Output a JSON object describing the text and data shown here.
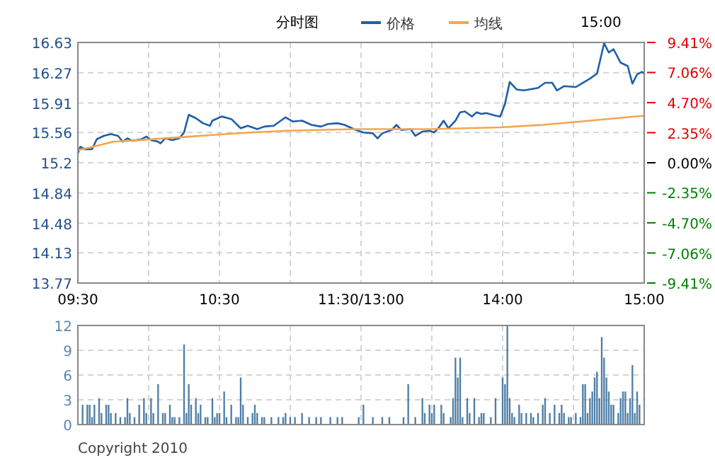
{
  "chart_data": [
    {
      "type": "line",
      "title": "分时图",
      "annotations": [
        "15:00"
      ],
      "legend": "top",
      "grid": true,
      "categories": [
        "09:30",
        null,
        null,
        null,
        null,
        null,
        null,
        null,
        null,
        null,
        null,
        null,
        null,
        null,
        null,
        null,
        null,
        null,
        null,
        null,
        null,
        null,
        null,
        null,
        null,
        null,
        null,
        null,
        null,
        null,
        null,
        null,
        null,
        null,
        null,
        null,
        null,
        null,
        null,
        null,
        null,
        null,
        null,
        null,
        null,
        null,
        null,
        null,
        null,
        null,
        null,
        null,
        null,
        null,
        null,
        null,
        null,
        null,
        null,
        null,
        "10:30",
        null,
        null,
        null,
        null,
        null,
        null,
        null,
        null,
        null,
        null,
        null,
        null,
        null,
        null,
        null,
        null,
        null,
        null,
        null,
        null,
        null,
        null,
        null,
        null,
        null,
        null,
        null,
        null,
        null,
        null,
        null,
        null,
        null,
        null,
        null,
        null,
        null,
        null,
        null,
        null,
        null,
        null,
        null,
        null,
        null,
        null,
        null,
        null,
        null,
        null,
        null,
        null,
        null,
        null,
        null,
        null,
        null,
        null,
        null,
        "11:30/13:00",
        null,
        null,
        null,
        null,
        null,
        null,
        null,
        null,
        null,
        null,
        null,
        null,
        null,
        null,
        null,
        null,
        null,
        null,
        null,
        null,
        null,
        null,
        null,
        null,
        null,
        null,
        null,
        null,
        null,
        null,
        null,
        null,
        null,
        null,
        null,
        null,
        null,
        null,
        null,
        null,
        null,
        null,
        null,
        null,
        null,
        null,
        null,
        null,
        null,
        null,
        null,
        null,
        null,
        null,
        null,
        null,
        null,
        null,
        null,
        "14:00",
        null,
        null,
        null,
        null,
        null,
        null,
        null,
        null,
        null,
        null,
        null,
        null,
        null,
        null,
        null,
        null,
        null,
        null,
        null,
        null,
        null,
        null,
        null,
        null,
        null,
        null,
        null,
        null,
        null,
        null,
        null,
        null,
        null,
        null,
        null,
        null,
        null,
        null,
        null,
        null,
        null,
        null,
        null,
        null,
        null,
        null,
        null,
        null,
        null,
        null,
        null,
        null,
        null,
        null,
        null,
        null,
        null,
        null,
        null,
        "15:00"
      ],
      "ylim": [
        13.77,
        16.63
      ],
      "yticks": [
        13.77,
        14.13,
        14.48,
        14.84,
        15.2,
        15.56,
        15.91,
        16.27,
        16.63
      ],
      "y2lim": [
        -9.41,
        9.41
      ],
      "y2ticks": [
        {
          "value": -9.41,
          "label": "-9.41%"
        },
        {
          "value": -7.06,
          "label": "-7.06%"
        },
        {
          "value": -4.7,
          "label": "-4.70%"
        },
        {
          "value": -2.35,
          "label": "-2.35%"
        },
        {
          "value": 0,
          "label": "0.00%"
        },
        {
          "value": 2.35,
          "label": "2.35%"
        },
        {
          "value": 4.7,
          "label": "4.70%"
        },
        {
          "value": 7.06,
          "label": "7.06%"
        },
        {
          "value": 9.41,
          "label": "9.41%"
        }
      ],
      "series": [
        {
          "name": "价格",
          "color": "#1f5fa8",
          "values": [
            15.31,
            15.39,
            null,
            15.36,
            null,
            null,
            15.36,
            null,
            15.48,
            null,
            null,
            15.52,
            null,
            null,
            15.54,
            null,
            null,
            15.52,
            null,
            15.45,
            null,
            15.49,
            null,
            15.46,
            null,
            null,
            null,
            15.48,
            null,
            15.51,
            null,
            15.47,
            null,
            null,
            15.45,
            15.43,
            null,
            15.49,
            null,
            null,
            15.47,
            null,
            null,
            15.49,
            null,
            15.56,
            null,
            15.77,
            null,
            null,
            15.73,
            null,
            null,
            15.67,
            null,
            null,
            15.64,
            15.7,
            null,
            null,
            null,
            15.75,
            null,
            null,
            null,
            15.72,
            null,
            null,
            null,
            15.61,
            null,
            null,
            15.64,
            null,
            null,
            null,
            15.6,
            null,
            null,
            15.63,
            null,
            null,
            null,
            15.64,
            null,
            null,
            null,
            null,
            15.74,
            null,
            null,
            15.69,
            null,
            null,
            null,
            15.7,
            null,
            null,
            null,
            15.65,
            null,
            null,
            null,
            15.63,
            null,
            null,
            15.66,
            null,
            null,
            null,
            15.67,
            null,
            null,
            15.65,
            null,
            null,
            null,
            15.6,
            null,
            null,
            null,
            15.56,
            null,
            null,
            null,
            15.55,
            null,
            15.49,
            null,
            15.55,
            null,
            null,
            null,
            15.59,
            null,
            15.65,
            null,
            15.59,
            null,
            null,
            null,
            15.6,
            null,
            15.52,
            null,
            null,
            15.57,
            null,
            null,
            15.58,
            null,
            15.56,
            null,
            15.62,
            null,
            15.7,
            null,
            15.61,
            null,
            null,
            15.7,
            null,
            15.8,
            null,
            15.81,
            null,
            null,
            15.75,
            null,
            15.8,
            null,
            15.78,
            null,
            15.79,
            null,
            null,
            null,
            15.76,
            null,
            15.75,
            null,
            15.9,
            null,
            16.16,
            null,
            null,
            16.07,
            null,
            null,
            16.06,
            null,
            null,
            null,
            null,
            null,
            16.09,
            null,
            null,
            16.15,
            null,
            null,
            16.15,
            null,
            16.06,
            null,
            null,
            16.11,
            null,
            null,
            null,
            null,
            16.1,
            null,
            null,
            16.15,
            null,
            null,
            16.2,
            null,
            null,
            16.26,
            null,
            null,
            16.62,
            null,
            16.51,
            null,
            16.55,
            null,
            null,
            16.39,
            null,
            null,
            16.35,
            null,
            16.14,
            null,
            16.25,
            null,
            16.28,
            16.26
          ]
        },
        {
          "name": "均线",
          "color": "#f5a550",
          "values": [
            15.35,
            null,
            null,
            null,
            null,
            15.38,
            null,
            null,
            null,
            null,
            null,
            null,
            null,
            null,
            null,
            15.45,
            null,
            null,
            null,
            null,
            null,
            null,
            null,
            null,
            null,
            null,
            null,
            15.47,
            null,
            null,
            null,
            null,
            null,
            null,
            null,
            null,
            null,
            null,
            null,
            null,
            null,
            null,
            null,
            null,
            null,
            null,
            null,
            15.51,
            null,
            null,
            null,
            null,
            null,
            null,
            null,
            null,
            null,
            15.53,
            null,
            null,
            null,
            null,
            null,
            null,
            null,
            null,
            null,
            null,
            null,
            null,
            null,
            null,
            null,
            15.56,
            null,
            null,
            null,
            null,
            null,
            null,
            null,
            null,
            null,
            null,
            null,
            null,
            null,
            null,
            null,
            15.58,
            null,
            null,
            null,
            null,
            null,
            null,
            null,
            null,
            null,
            null,
            null,
            null,
            null,
            null,
            null,
            null,
            null,
            null,
            null,
            null,
            null,
            null,
            null,
            null,
            null,
            null,
            null,
            15.6,
            null,
            null,
            null,
            null,
            null,
            null,
            null,
            null,
            null,
            null,
            null,
            null,
            null,
            null,
            null,
            null,
            null,
            null,
            null,
            null,
            null,
            null,
            null,
            null,
            null,
            null,
            null,
            null,
            null,
            null,
            null,
            15.6,
            null,
            null,
            null,
            null,
            null,
            null,
            null,
            null,
            null,
            null,
            null,
            null,
            null,
            null,
            null,
            null,
            null,
            null,
            null,
            null,
            null,
            null,
            null,
            null,
            null,
            null,
            null,
            null,
            null,
            15.62,
            null,
            null,
            null,
            null,
            null,
            null,
            null,
            null,
            null,
            null,
            null,
            null,
            null,
            null,
            null,
            null,
            null,
            15.65,
            null,
            null,
            null,
            null,
            null,
            null,
            null,
            null,
            null,
            null,
            null,
            null,
            null,
            null,
            null,
            null,
            null,
            null,
            null,
            15.7,
            null,
            null,
            null,
            null,
            null,
            null,
            null,
            null,
            null,
            null,
            null,
            null,
            null,
            null,
            null,
            null,
            null,
            null,
            null,
            null,
            null,
            null,
            15.76
          ]
        }
      ]
    },
    {
      "type": "bar",
      "grid": true,
      "tick_labels": "y",
      "annotations": [
        "Copyright 2010"
      ],
      "categories": [
        null,
        null,
        null,
        null,
        null,
        null,
        null,
        null,
        null,
        null,
        null,
        null,
        null,
        null,
        null,
        null,
        null,
        null,
        null,
        null,
        null,
        null,
        null,
        null,
        null,
        null,
        null,
        null,
        null,
        null,
        null,
        null,
        null,
        null,
        null,
        null,
        null,
        null,
        null,
        null,
        null,
        null,
        null,
        null,
        null,
        null,
        null,
        null,
        null,
        null,
        null,
        null,
        null,
        null,
        null,
        null,
        null,
        null,
        null,
        null,
        null,
        null,
        null,
        null,
        null,
        null,
        null,
        null,
        null,
        null,
        null,
        null,
        null,
        null,
        null,
        null,
        null,
        null,
        null,
        null,
        null,
        null,
        null,
        null,
        null,
        null,
        null,
        null,
        null,
        null,
        null,
        null,
        null,
        null,
        null,
        null,
        null,
        null,
        null,
        null,
        null,
        null,
        null,
        null,
        null,
        null,
        null,
        null,
        null,
        null,
        null,
        null,
        null,
        null,
        null,
        null,
        null,
        null,
        null,
        null,
        null,
        null,
        null,
        null,
        null,
        null,
        null,
        null,
        null,
        null,
        null,
        null,
        null,
        null,
        null,
        null,
        null,
        null,
        null,
        null,
        null,
        null,
        null,
        null,
        null,
        null,
        null,
        null,
        null,
        null,
        null,
        null,
        null,
        null,
        null,
        null,
        null,
        null,
        null,
        null,
        null,
        null,
        null,
        null,
        null,
        null,
        null,
        null,
        null,
        null,
        null,
        null,
        null,
        null,
        null,
        null,
        null,
        null,
        null,
        null,
        null,
        null,
        null,
        null,
        null,
        null,
        null,
        null,
        null,
        null,
        null,
        null,
        null,
        null,
        null,
        null,
        null,
        null,
        null,
        null,
        null,
        null,
        null,
        null,
        null,
        null,
        null,
        null,
        null,
        null,
        null,
        null,
        null,
        null,
        null,
        null,
        null,
        null,
        null,
        null,
        null,
        null,
        null,
        null,
        null,
        null,
        null,
        null,
        null,
        null,
        null,
        null,
        null,
        null,
        null,
        null,
        null,
        null,
        null,
        null,
        null
      ],
      "ylim": [
        0,
        12
      ],
      "yticks": [
        0,
        3,
        6,
        9,
        12
      ],
      "series": [
        {
          "color": "#4f7ea6",
          "values": [
            null,
            null,
            2.4,
            null,
            2.4,
            2.4,
            0.9,
            2.4,
            null,
            3.2,
            1.4,
            null,
            2.4,
            2.4,
            1.4,
            null,
            1.4,
            null,
            0.9,
            null,
            0.9,
            3.2,
            1.4,
            null,
            0.9,
            null,
            2.4,
            null,
            3.2,
            1.4,
            null,
            3.2,
            1.4,
            null,
            4.9,
            null,
            1.4,
            1.4,
            null,
            2.4,
            0.9,
            0.9,
            null,
            0.9,
            null,
            9.7,
            1.4,
            4.9,
            2.4,
            null,
            3.2,
            1.4,
            2.4,
            null,
            0.9,
            0.9,
            null,
            3.2,
            0.9,
            1.4,
            1.4,
            null,
            4.0,
            0.9,
            null,
            2.4,
            null,
            0.9,
            0.9,
            5.7,
            2.4,
            null,
            0.9,
            null,
            1.4,
            2.4,
            1.4,
            null,
            0.9,
            0.9,
            null,
            null,
            0.9,
            null,
            null,
            0.9,
            null,
            0.9,
            1.4,
            null,
            0.9,
            null,
            0.9,
            null,
            null,
            1.4,
            null,
            null,
            0.9,
            null,
            null,
            0.9,
            null,
            0.9,
            null,
            null,
            null,
            0.9,
            null,
            null,
            0.9,
            null,
            0.9,
            null,
            null,
            null,
            null,
            null,
            null,
            0.9,
            null,
            2.4,
            null,
            null,
            null,
            0.9,
            null,
            null,
            null,
            0.9,
            null,
            null,
            0.9,
            null,
            null,
            null,
            null,
            null,
            0.9,
            null,
            4.9,
            null,
            null,
            0.9,
            null,
            null,
            3.2,
            1.4,
            null,
            2.4,
            1.4,
            2.4,
            null,
            null,
            2.4,
            1.4,
            null,
            null,
            0.9,
            3.2,
            8.1,
            5.7,
            8.1,
            0.9,
            null,
            3.2,
            1.4,
            null,
            3.2,
            null,
            0.9,
            1.4,
            1.4,
            null,
            null,
            0.9,
            null,
            3.2,
            null,
            null,
            5.7,
            4.9,
            12,
            3.2,
            1.4,
            0.9,
            null,
            2.4,
            1.4,
            null,
            1.4,
            null,
            1.4,
            0.9,
            null,
            1.4,
            null,
            2.4,
            3.2,
            null,
            1.4,
            null,
            2.4,
            null,
            1.4,
            2.4,
            1.4,
            null,
            0.9,
            0.9,
            null,
            1.4,
            null,
            0.9,
            4.9,
            4.9,
            1.4,
            3.2,
            4.0,
            5.7,
            6.4,
            3.2,
            10.6,
            8.1,
            5.7,
            4.0,
            2.4,
            2.4,
            null,
            1.4,
            3.2,
            4.0,
            4.0,
            1.4,
            3.2,
            7.2,
            1.4,
            4.0,
            2.4,
            null,
            null
          ]
        }
      ]
    }
  ]
}
